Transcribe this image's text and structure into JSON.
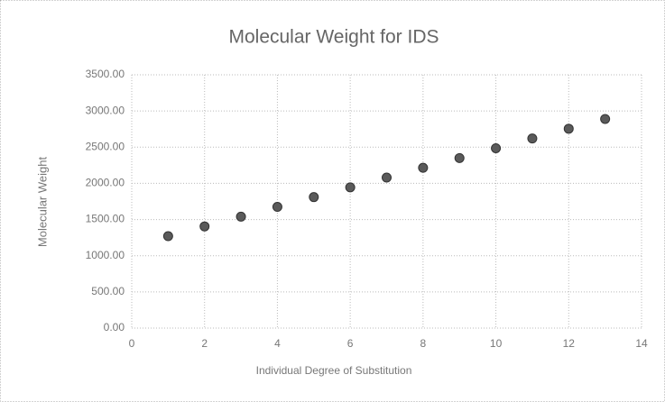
{
  "chart_data": {
    "type": "scatter",
    "title": "Molecular Weight for IDS",
    "x_label": "Individual Degree of Substitution",
    "y_label": "Molecular Weight",
    "x": [
      1,
      2,
      3,
      4,
      5,
      6,
      7,
      8,
      9,
      10,
      11,
      12,
      13
    ],
    "series": [
      {
        "name": "Molecular Weight",
        "color": "#5a5a5a",
        "values": [
          1270,
          1405,
          1540,
          1675,
          1810,
          1945,
          2080,
          2215,
          2350,
          2485,
          2620,
          2755,
          2890
        ]
      }
    ],
    "xlim": [
      0,
      14
    ],
    "xticks": [
      0,
      2,
      4,
      6,
      8,
      10,
      12,
      14
    ],
    "ylim": [
      0,
      3500
    ],
    "yticks": [
      {
        "value": 0,
        "label": "0.00"
      },
      {
        "value": 500,
        "label": "500.00"
      },
      {
        "value": 1000,
        "label": "1000.00"
      },
      {
        "value": 1500,
        "label": "1500.00"
      },
      {
        "value": 2000,
        "label": "2000.00"
      },
      {
        "value": 2500,
        "label": "2500.00"
      },
      {
        "value": 3000,
        "label": "3000.00"
      },
      {
        "value": 3500,
        "label": "3500.00"
      }
    ],
    "grid": true
  }
}
